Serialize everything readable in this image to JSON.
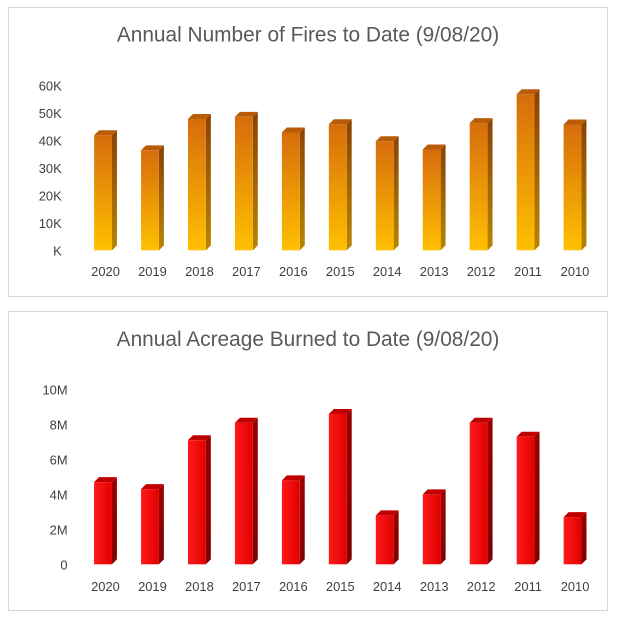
{
  "colors": {
    "fires_bar_top": "#d66c0c",
    "fires_bar_bottom": "#ffc000",
    "acres_bar_top": "#f00000",
    "acres_bar_bottom": "#ff1a1a",
    "text": "#595959"
  },
  "chart_data": [
    {
      "type": "bar",
      "title": "Annual Number of Fires to Date (9/08/20)",
      "categories": [
        "2020",
        "2019",
        "2018",
        "2017",
        "2016",
        "2015",
        "2014",
        "2013",
        "2012",
        "2011",
        "2010"
      ],
      "values": [
        41900,
        36400,
        47800,
        48600,
        42900,
        45900,
        39700,
        36700,
        46300,
        56800,
        45800
      ],
      "ylim": [
        0,
        60000
      ],
      "yticks": [
        0,
        10000,
        20000,
        30000,
        40000,
        50000,
        60000
      ],
      "ytick_labels": [
        "K",
        "10K",
        "20K",
        "30K",
        "40K",
        "50K",
        "60K"
      ],
      "grid": false,
      "xlabel": "",
      "ylabel": ""
    },
    {
      "type": "bar",
      "title": "Annual Acreage Burned to Date (9/08/20)",
      "categories": [
        "2020",
        "2019",
        "2018",
        "2017",
        "2016",
        "2015",
        "2014",
        "2013",
        "2012",
        "2011",
        "2010"
      ],
      "values": [
        4700000,
        4300000,
        7100000,
        8100000,
        4800000,
        8600000,
        2800000,
        4000000,
        8100000,
        7300000,
        2700000
      ],
      "ylim": [
        0,
        10000000
      ],
      "yticks": [
        0,
        2000000,
        4000000,
        6000000,
        8000000,
        10000000
      ],
      "ytick_labels": [
        "0",
        "2M",
        "4M",
        "6M",
        "8M",
        "10M"
      ],
      "grid": false,
      "xlabel": "",
      "ylabel": ""
    }
  ]
}
